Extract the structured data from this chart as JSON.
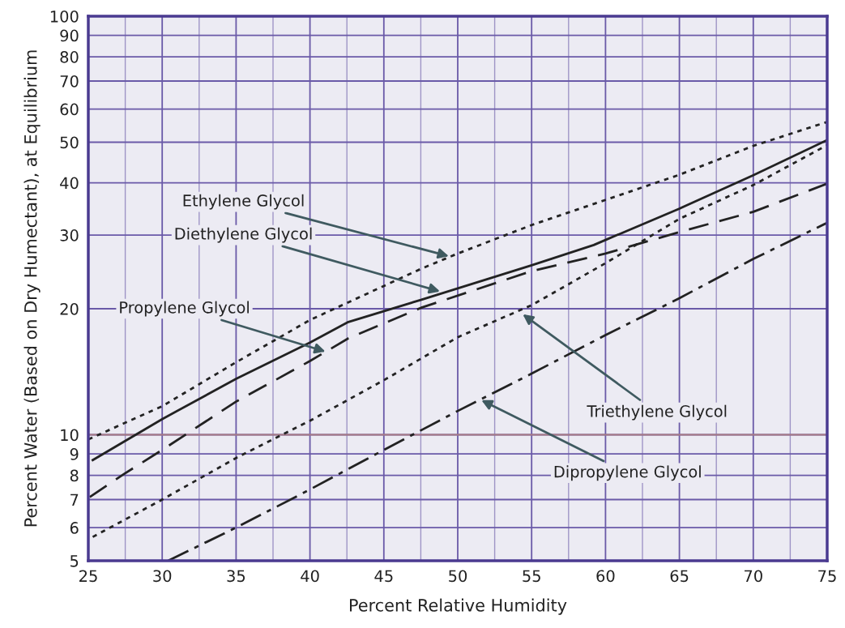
{
  "chart_data": {
    "type": "line",
    "xlabel": "Percent Relative Humidity",
    "ylabel": "Percent Water (Based on Dry Humectant), at Equilibrium",
    "log": "y",
    "grid": true,
    "marker": "none",
    "xlim": [
      25,
      75
    ],
    "xticks": [
      25,
      {
        "value": 27.5,
        "label": null
      },
      30,
      {
        "value": 32.5,
        "label": null
      },
      35,
      {
        "value": 37.5,
        "label": null
      },
      40,
      {
        "value": 42.5,
        "label": null
      },
      45,
      {
        "value": 47.5,
        "label": null
      },
      50,
      {
        "value": 52.5,
        "label": null
      },
      55,
      {
        "value": 57.5,
        "label": null
      },
      60,
      {
        "value": 62.5,
        "label": null
      },
      65,
      {
        "value": 67.5,
        "label": null
      },
      70,
      {
        "value": 72.5,
        "label": null
      },
      75
    ],
    "ylim": [
      5,
      100
    ],
    "yticks": [
      5,
      6,
      7,
      8,
      9,
      10,
      20,
      30,
      40,
      50,
      60,
      70,
      80,
      90,
      100
    ],
    "ref_lines": [
      {
        "axis": "y",
        "value": 10,
        "color": "#a87c86"
      }
    ],
    "series": [
      {
        "color": "#222222",
        "line_style": "dotted",
        "x": [
          25,
          30,
          35,
          40,
          47.5,
          50,
          55,
          60,
          65,
          70,
          75
        ],
        "values": [
          9.75,
          11.7,
          14.9,
          18.8,
          24.9,
          27.1,
          31.7,
          36.4,
          41.8,
          49,
          55.9
        ]
      },
      {
        "color": "#222222",
        "line_style": "solid",
        "x": [
          25.3,
          30,
          35,
          40,
          42.6,
          47.5,
          55,
          59.2,
          60,
          65,
          70,
          75
        ],
        "values": [
          8.7,
          10.9,
          13.6,
          16.6,
          18.6,
          21,
          25.4,
          28.4,
          29.2,
          34.7,
          41.7,
          50.6
        ]
      },
      {
        "color": "#222222",
        "line_style": "dashed",
        "x": [
          25.1,
          27.4,
          30,
          35,
          40,
          42.6,
          47.5,
          55,
          60,
          65,
          70,
          75
        ],
        "values": [
          7.1,
          8.05,
          9.2,
          12,
          15,
          17,
          20.1,
          24.6,
          27.1,
          30.5,
          34.1,
          39.8
        ]
      },
      {
        "color": "#222222",
        "line_style": "dotted",
        "x": [
          25.3,
          30,
          35,
          40,
          45,
          50,
          55,
          60,
          65,
          70,
          75
        ],
        "values": [
          5.7,
          7,
          8.8,
          10.8,
          13.5,
          17.1,
          20.4,
          25.7,
          32.8,
          39.5,
          49.2
        ]
      },
      {
        "color": "#222222",
        "line_style": "dashdot",
        "x": [
          30.4,
          35,
          40,
          45,
          50,
          55,
          60,
          65,
          70,
          75
        ],
        "values": [
          5,
          6,
          7.4,
          9.2,
          11.4,
          14,
          17.3,
          21.2,
          26.3,
          32.1
        ]
      }
    ],
    "annotations": [
      {
        "text": "Ethylene Glycol",
        "x": 49.4,
        "y": 26.7
      },
      {
        "text": "Diethylene Glycol",
        "x": 48.8,
        "y": 22
      },
      {
        "text": "Propylene Glycol",
        "x": 41.05,
        "y": 15.8
      },
      {
        "text": "Triethylene Glycol",
        "x": 54.4,
        "y": 19.4
      },
      {
        "text": "Dipropylene Glycol",
        "x": 51.6,
        "y": 12.1
      }
    ]
  }
}
